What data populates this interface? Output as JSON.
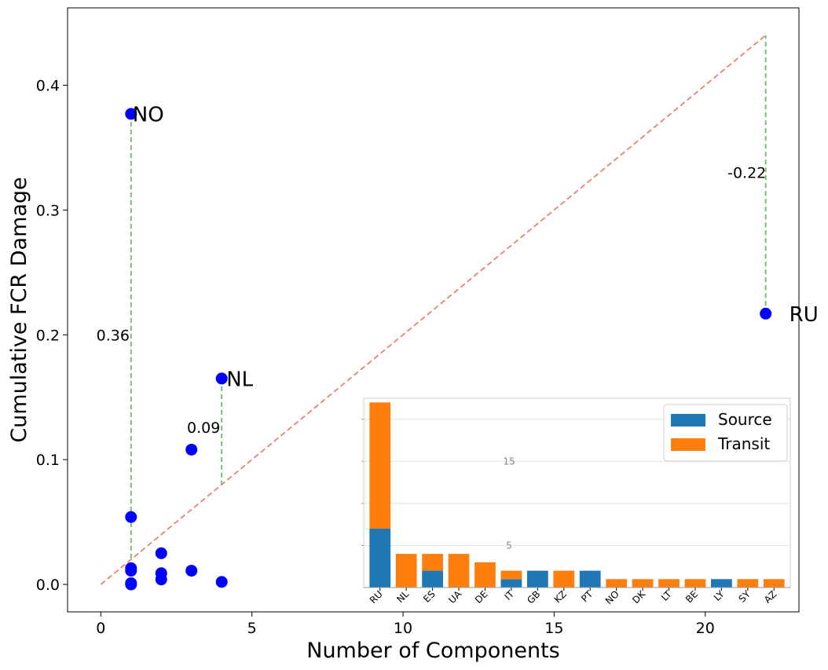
{
  "chart_data": [
    {
      "type": "scatter",
      "title": "",
      "xlabel": "Number of Components",
      "ylabel": "Cumulative FCR Damage",
      "xlim": [
        -1.1,
        23.1
      ],
      "ylim": [
        -0.022,
        0.462
      ],
      "xticks": [
        0,
        5,
        10,
        15,
        20
      ],
      "yticks": [
        0.0,
        0.1,
        0.2,
        0.3,
        0.4
      ],
      "grid": false,
      "points": [
        {
          "x": 1,
          "y": 0.377,
          "label": "NO"
        },
        {
          "x": 1,
          "y": 0.054
        },
        {
          "x": 1,
          "y": 0.013
        },
        {
          "x": 1,
          "y": 0.011
        },
        {
          "x": 1,
          "y": 0.001
        },
        {
          "x": 1,
          "y": 0.0
        },
        {
          "x": 2,
          "y": 0.025
        },
        {
          "x": 2,
          "y": 0.009
        },
        {
          "x": 2,
          "y": 0.004
        },
        {
          "x": 3,
          "y": 0.108
        },
        {
          "x": 3,
          "y": 0.011
        },
        {
          "x": 4,
          "y": 0.165,
          "label": "NL"
        },
        {
          "x": 4,
          "y": 0.002
        },
        {
          "x": 22,
          "y": 0.217,
          "label": "RU"
        }
      ],
      "reference_line": {
        "from": [
          0,
          0
        ],
        "to": [
          22,
          0.44
        ],
        "color": "#f08070",
        "style": "dashed"
      },
      "residuals": [
        {
          "x": 1,
          "from": 0.377,
          "to": 0.02,
          "label": "0.36"
        },
        {
          "x": 4,
          "from": 0.165,
          "to": 0.08,
          "label": "0.09"
        },
        {
          "x": 22,
          "from": 0.217,
          "to": 0.44,
          "label": "-0.22"
        }
      ],
      "point_color": "#0000ff",
      "residual_color": "#66bb66"
    },
    {
      "type": "bar",
      "stacked": true,
      "categories": [
        "RU",
        "NL",
        "ES",
        "UA",
        "DE",
        "IT",
        "GB",
        "KZ",
        "PT",
        "NO",
        "DK",
        "LT",
        "BE",
        "LY",
        "SY",
        "AZ"
      ],
      "series": [
        {
          "name": "Source",
          "color": "#1f77b4",
          "values": [
            7,
            0,
            2,
            0,
            0,
            1,
            2,
            0,
            2,
            0,
            0,
            0,
            0,
            1,
            0,
            0
          ]
        },
        {
          "name": "Transit",
          "color": "#ff7f0e",
          "values": [
            15,
            4,
            2,
            4,
            3,
            1,
            0,
            2,
            0,
            1,
            1,
            1,
            1,
            0,
            1,
            1
          ]
        }
      ],
      "yticks": [
        5,
        15
      ],
      "ylim": [
        0,
        22.5
      ],
      "grid": true,
      "legend": "top-right"
    }
  ]
}
